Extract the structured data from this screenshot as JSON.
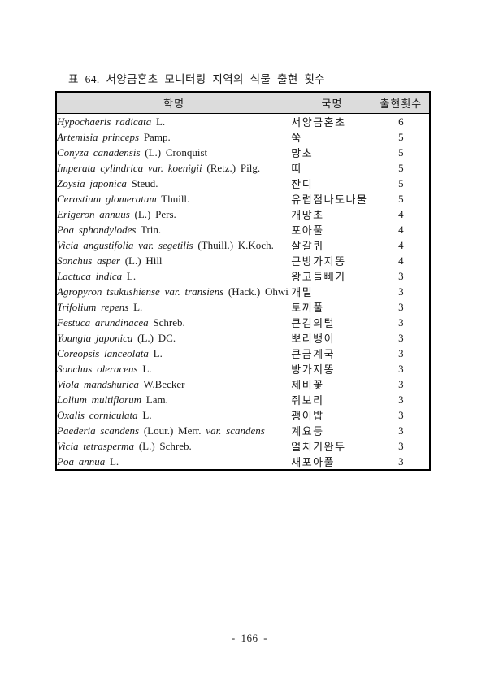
{
  "caption": "표 64. 서양금혼초 모니터링 지역의 식물 출현 횟수",
  "table": {
    "columns": [
      {
        "label": "학명"
      },
      {
        "label": "국명"
      },
      {
        "label": "출현횟수"
      }
    ],
    "rows": [
      {
        "parts": [
          {
            "text": "Hypochaeris radicata",
            "italic": true
          },
          {
            "text": "L.",
            "italic": false
          }
        ],
        "korean": "서양금혼초",
        "count": "6"
      },
      {
        "parts": [
          {
            "text": "Artemisia princeps",
            "italic": true
          },
          {
            "text": "Pamp.",
            "italic": false
          }
        ],
        "korean": "쑥",
        "count": "5"
      },
      {
        "parts": [
          {
            "text": "Conyza canadensis",
            "italic": true
          },
          {
            "text": "(L.) Cronquist",
            "italic": false
          }
        ],
        "korean": "망초",
        "count": "5"
      },
      {
        "parts": [
          {
            "text": "Imperata cylindrica var. koenigii",
            "italic": true
          },
          {
            "text": "(Retz.)  Pilg.",
            "italic": false
          }
        ],
        "korean": "띠",
        "count": "5"
      },
      {
        "parts": [
          {
            "text": "Zoysia japonica",
            "italic": true
          },
          {
            "text": "Steud.",
            "italic": false
          }
        ],
        "korean": "잔디",
        "count": "5"
      },
      {
        "parts": [
          {
            "text": "Cerastium glomeratum",
            "italic": true
          },
          {
            "text": "Thuill.",
            "italic": false
          }
        ],
        "korean": "유럽점나도나물",
        "count": "5"
      },
      {
        "parts": [
          {
            "text": "Erigeron annuus",
            "italic": true
          },
          {
            "text": "(L.) Pers.",
            "italic": false
          }
        ],
        "korean": "개망초",
        "count": "4"
      },
      {
        "parts": [
          {
            "text": "Poa sphondylodes",
            "italic": true
          },
          {
            "text": "Trin.",
            "italic": false
          }
        ],
        "korean": "포아풀",
        "count": "4"
      },
      {
        "parts": [
          {
            "text": "Vicia angustifolia var. segetilis",
            "italic": true
          },
          {
            "text": "(Thuill.) K.Koch.",
            "italic": false
          }
        ],
        "korean": "살갈퀴",
        "count": "4"
      },
      {
        "parts": [
          {
            "text": "Sonchus asper",
            "italic": true
          },
          {
            "text": "(L.) Hill",
            "italic": false
          }
        ],
        "korean": "큰방가지똥",
        "count": "4"
      },
      {
        "parts": [
          {
            "text": "Lactuca indica",
            "italic": true
          },
          {
            "text": "L.",
            "italic": false
          }
        ],
        "korean": "왕고들빼기",
        "count": "3"
      },
      {
        "parts": [
          {
            "text": "Agropyron tsukushiense var. transiens",
            "italic": true
          },
          {
            "text": "(Hack.) Ohwi",
            "italic": false
          }
        ],
        "korean": "개밀",
        "count": "3"
      },
      {
        "parts": [
          {
            "text": "Trifolium repens",
            "italic": true
          },
          {
            "text": "L.",
            "italic": false
          }
        ],
        "korean": "토끼풀",
        "count": "3"
      },
      {
        "parts": [
          {
            "text": "Festuca arundinacea",
            "italic": true
          },
          {
            "text": "Schreb.",
            "italic": false
          }
        ],
        "korean": "큰김의털",
        "count": "3"
      },
      {
        "parts": [
          {
            "text": "Youngia japonica",
            "italic": true
          },
          {
            "text": "(L.) DC.",
            "italic": false
          }
        ],
        "korean": "뽀리뱅이",
        "count": "3"
      },
      {
        "parts": [
          {
            "text": "Coreopsis lanceolata",
            "italic": true
          },
          {
            "text": "L.",
            "italic": false
          }
        ],
        "korean": "큰금계국",
        "count": "3"
      },
      {
        "parts": [
          {
            "text": "Sonchus oleraceus",
            "italic": true
          },
          {
            "text": "L.",
            "italic": false
          }
        ],
        "korean": "방가지똥",
        "count": "3"
      },
      {
        "parts": [
          {
            "text": "Viola mandshurica",
            "italic": true
          },
          {
            "text": "W.Becker",
            "italic": false
          }
        ],
        "korean": "제비꽃",
        "count": "3"
      },
      {
        "parts": [
          {
            "text": "Lolium multiflorum",
            "italic": true
          },
          {
            "text": "Lam.",
            "italic": false
          }
        ],
        "korean": "쥐보리",
        "count": "3"
      },
      {
        "parts": [
          {
            "text": "Oxalis corniculata",
            "italic": true
          },
          {
            "text": "L.",
            "italic": false
          }
        ],
        "korean": "괭이밥",
        "count": "3"
      },
      {
        "parts": [
          {
            "text": "Paederia scandens",
            "italic": true
          },
          {
            "text": "(Lour.) Merr.",
            "italic": false
          },
          {
            "text": "var. scandens",
            "italic": true
          }
        ],
        "korean": "계요등",
        "count": "3"
      },
      {
        "parts": [
          {
            "text": "Vicia tetrasperma",
            "italic": true
          },
          {
            "text": "(L.) Schreb.",
            "italic": false
          }
        ],
        "korean": "얼치기완두",
        "count": "3"
      },
      {
        "parts": [
          {
            "text": "Poa annua",
            "italic": true
          },
          {
            "text": "L.",
            "italic": false
          }
        ],
        "korean": "새포아풀",
        "count": "3"
      }
    ]
  },
  "footer": {
    "page_number": "- 166 -"
  },
  "colors": {
    "header_bg": "#dcdcdc",
    "border": "#000000",
    "text": "#1a1a1a"
  }
}
